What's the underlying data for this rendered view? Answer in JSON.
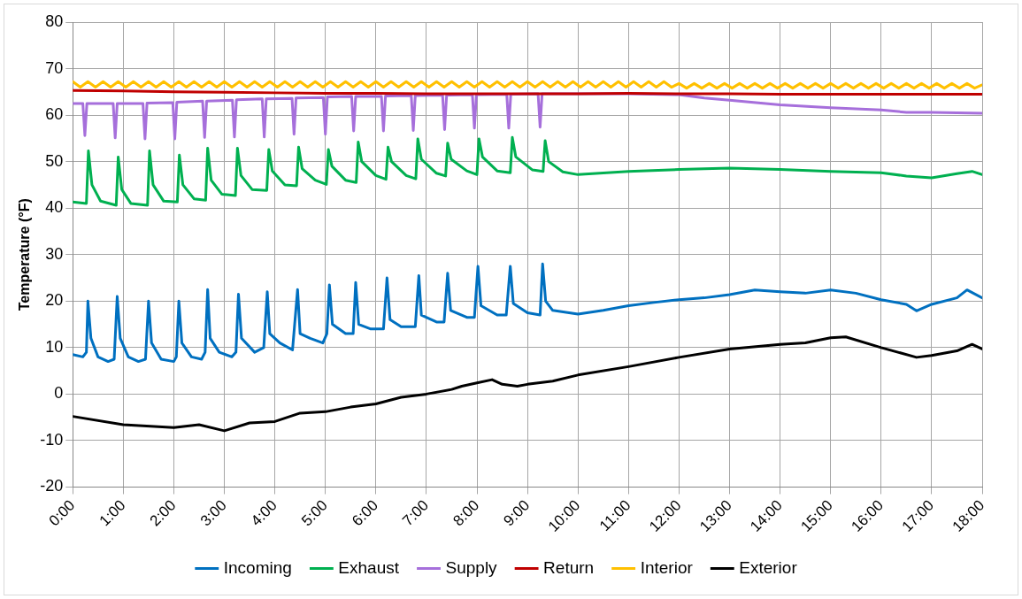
{
  "chart_data": {
    "type": "line",
    "ylabel": "Temperature (°F)",
    "xlim": [
      0,
      18
    ],
    "xticks": [
      {
        "value": 0,
        "label": "0:00"
      },
      {
        "value": 1,
        "label": "1:00"
      },
      {
        "value": 2,
        "label": "2:00"
      },
      {
        "value": 3,
        "label": "3:00"
      },
      {
        "value": 4,
        "label": "4:00"
      },
      {
        "value": 5,
        "label": "5:00"
      },
      {
        "value": 6,
        "label": "6:00"
      },
      {
        "value": 7,
        "label": "7:00"
      },
      {
        "value": 8,
        "label": "8:00"
      },
      {
        "value": 9,
        "label": "9:00"
      },
      {
        "value": 10,
        "label": "10:00"
      },
      {
        "value": 11,
        "label": "11:00"
      },
      {
        "value": 12,
        "label": "12:00"
      },
      {
        "value": 13,
        "label": "13:00"
      },
      {
        "value": 14,
        "label": "14:00"
      },
      {
        "value": 15,
        "label": "15:00"
      },
      {
        "value": 16,
        "label": "16:00"
      },
      {
        "value": 17,
        "label": "17:00"
      },
      {
        "value": 18,
        "label": "18:00"
      }
    ],
    "ylim": [
      -20,
      80
    ],
    "yticks": [
      -20,
      -10,
      0,
      10,
      20,
      30,
      40,
      50,
      60,
      70,
      80
    ],
    "grid": true,
    "legend": "bottom",
    "marker": "none",
    "line_style": "solid",
    "series": [
      {
        "name": "Incoming",
        "color": "#0070c0",
        "x": [
          0,
          0.2,
          0.27,
          0.3,
          0.36,
          0.5,
          0.7,
          0.82,
          0.88,
          0.94,
          1.1,
          1.3,
          1.44,
          1.5,
          1.56,
          1.75,
          2.0,
          2.05,
          2.1,
          2.16,
          2.35,
          2.55,
          2.62,
          2.67,
          2.72,
          2.9,
          3.15,
          3.23,
          3.28,
          3.34,
          3.6,
          3.78,
          3.85,
          3.9,
          4.1,
          4.35,
          4.45,
          4.5,
          4.7,
          4.95,
          5.03,
          5.08,
          5.14,
          5.4,
          5.55,
          5.6,
          5.66,
          5.9,
          6.15,
          6.22,
          6.28,
          6.5,
          6.78,
          6.85,
          6.9,
          7.2,
          7.35,
          7.42,
          7.48,
          7.8,
          7.95,
          8.02,
          8.08,
          8.4,
          8.58,
          8.66,
          8.72,
          9.0,
          9.25,
          9.3,
          9.36,
          9.5,
          10,
          10.5,
          11,
          11.5,
          12,
          12.5,
          13,
          13.5,
          14,
          14.5,
          15,
          15.5,
          16,
          16.5,
          16.7,
          17,
          17.5,
          17.7,
          18
        ],
        "values": [
          8.5,
          8,
          9,
          20,
          12,
          8,
          7,
          7.5,
          21,
          12,
          8,
          7,
          7.5,
          20,
          11,
          7.5,
          7,
          8,
          20,
          11,
          8,
          7.5,
          9,
          22.5,
          12,
          9,
          8,
          9,
          21.5,
          12,
          9,
          10,
          22,
          13,
          11,
          9.5,
          22.5,
          13,
          12,
          11,
          13,
          23.5,
          15,
          13,
          13,
          24,
          15,
          14,
          14,
          25,
          16,
          14.5,
          14.5,
          25.5,
          17,
          15.5,
          15.5,
          26,
          18,
          16.5,
          16.5,
          27.5,
          19,
          17,
          17,
          27.5,
          19.5,
          17.5,
          17,
          28,
          20,
          18,
          17.2,
          18,
          19,
          19.7,
          20.3,
          20.7,
          21.4,
          22.4,
          22,
          21.7,
          22.4,
          21.7,
          20.3,
          19.3,
          17.9,
          19.3,
          20.7,
          22.4,
          20.7
        ]
      },
      {
        "name": "Exhaust",
        "color": "#00b050",
        "x": [
          0,
          0.27,
          0.31,
          0.38,
          0.55,
          0.86,
          0.9,
          0.97,
          1.15,
          1.48,
          1.52,
          1.59,
          1.8,
          2.07,
          2.11,
          2.18,
          2.4,
          2.63,
          2.67,
          2.74,
          2.95,
          3.22,
          3.26,
          3.33,
          3.55,
          3.84,
          3.88,
          3.95,
          4.2,
          4.43,
          4.47,
          4.54,
          4.8,
          5.02,
          5.06,
          5.13,
          5.4,
          5.61,
          5.65,
          5.72,
          6.0,
          6.2,
          6.24,
          6.31,
          6.6,
          6.79,
          6.83,
          6.9,
          7.2,
          7.38,
          7.42,
          7.49,
          7.8,
          8.0,
          8.04,
          8.11,
          8.4,
          8.66,
          8.7,
          8.77,
          9.1,
          9.31,
          9.35,
          9.42,
          9.7,
          10,
          11,
          12,
          13,
          14,
          15,
          16,
          16.5,
          17,
          17.5,
          17.8,
          18
        ],
        "values": [
          41.3,
          41,
          52.3,
          45,
          41.5,
          40.6,
          51,
          44,
          41,
          40.6,
          52.3,
          45,
          41.5,
          41.3,
          51.4,
          45,
          42,
          41.7,
          52.9,
          46,
          43,
          42.7,
          52.9,
          47,
          44,
          43.8,
          52.6,
          48,
          45,
          44.8,
          53.1,
          48.5,
          46,
          45.1,
          52.6,
          49,
          46,
          45.5,
          54.2,
          50,
          47,
          46.2,
          53.1,
          50,
          47,
          46.3,
          54.9,
          50.5,
          47.5,
          46.9,
          54,
          50.5,
          48,
          47.2,
          54.9,
          51,
          48,
          47.6,
          55.2,
          51,
          48.2,
          47.9,
          54.5,
          50,
          47.8,
          47.2,
          47.9,
          48.3,
          48.6,
          48.3,
          47.9,
          47.6,
          46.9,
          46.5,
          47.4,
          47.9,
          47.2
        ]
      },
      {
        "name": "Supply",
        "color": "#a66fdb",
        "x": [
          0,
          0.2,
          0.24,
          0.28,
          0.8,
          0.84,
          0.88,
          1.39,
          1.43,
          1.47,
          1.98,
          2.02,
          2.06,
          2.57,
          2.61,
          2.65,
          3.16,
          3.2,
          3.24,
          3.75,
          3.79,
          3.83,
          4.34,
          4.38,
          4.42,
          4.96,
          5.0,
          5.04,
          5.52,
          5.56,
          5.6,
          6.11,
          6.15,
          6.19,
          6.7,
          6.74,
          6.78,
          7.32,
          7.36,
          7.4,
          7.91,
          7.95,
          7.99,
          8.59,
          8.63,
          8.67,
          9.21,
          9.25,
          9.29,
          10,
          11,
          12,
          12.5,
          13,
          14,
          15,
          16,
          16.5,
          17,
          18
        ],
        "values": [
          62.5,
          62.5,
          55.6,
          62.5,
          62.5,
          55.1,
          62.5,
          62.5,
          54.9,
          62.6,
          62.7,
          54.9,
          62.8,
          63,
          55.2,
          63,
          63.2,
          55.3,
          63.3,
          63.5,
          55.3,
          63.5,
          63.6,
          55.9,
          63.7,
          63.8,
          55.9,
          63.9,
          64,
          56.6,
          64,
          64,
          56.6,
          64.1,
          64.2,
          56.7,
          64.2,
          64.3,
          56.9,
          64.3,
          64.4,
          57.2,
          64.4,
          64.5,
          57.2,
          64.5,
          64.6,
          57.4,
          64.6,
          64.6,
          64.6,
          64.4,
          63.7,
          63.2,
          62.2,
          61.6,
          61.1,
          60.6,
          60.6,
          60.4
        ]
      },
      {
        "name": "Return",
        "color": "#c00000",
        "x": [
          0,
          1,
          2,
          3,
          4,
          5,
          6,
          7,
          8,
          9,
          10,
          11,
          12,
          13,
          14,
          15,
          16,
          17,
          18
        ],
        "values": [
          65.3,
          65.2,
          65,
          64.9,
          64.8,
          64.7,
          64.7,
          64.6,
          64.6,
          64.6,
          64.6,
          64.7,
          64.6,
          64.6,
          64.5,
          64.5,
          64.5,
          64.5,
          64.5
        ]
      },
      {
        "name": "Interior",
        "color": "#ffc000",
        "x": [
          0,
          0.15,
          0.3,
          0.45,
          0.6,
          0.75,
          0.9,
          1.05,
          1.2,
          1.35,
          1.5,
          1.65,
          1.8,
          1.95,
          2.1,
          2.25,
          2.4,
          2.55,
          2.7,
          2.85,
          3,
          3.15,
          3.3,
          3.45,
          3.6,
          3.75,
          3.9,
          4.05,
          4.2,
          4.35,
          4.5,
          4.65,
          4.8,
          4.95,
          5.1,
          5.25,
          5.4,
          5.55,
          5.7,
          5.85,
          6,
          6.15,
          6.3,
          6.45,
          6.6,
          6.75,
          6.9,
          7.05,
          7.2,
          7.35,
          7.5,
          7.65,
          7.8,
          7.95,
          8.1,
          8.25,
          8.4,
          8.55,
          8.7,
          8.85,
          9,
          9.15,
          9.3,
          9.45,
          9.6,
          9.75,
          9.9,
          10.05,
          10.2,
          10.35,
          10.5,
          10.65,
          10.8,
          10.95,
          11.1,
          11.25,
          11.4,
          11.55,
          11.7,
          11.85,
          12,
          12.15,
          12.3,
          12.45,
          12.6,
          12.75,
          12.9,
          13.05,
          13.2,
          13.35,
          13.5,
          13.65,
          13.8,
          13.95,
          14.1,
          14.25,
          14.4,
          14.55,
          14.7,
          14.85,
          15,
          15.15,
          15.3,
          15.45,
          15.6,
          15.75,
          15.9,
          16.05,
          16.2,
          16.35,
          16.5,
          16.65,
          16.8,
          16.95,
          17.1,
          17.25,
          17.4,
          17.55,
          17.7,
          17.85,
          18
        ],
        "values": [
          67.2,
          66,
          67.2,
          66,
          67.2,
          66,
          67.2,
          66,
          67.2,
          66,
          67.2,
          66,
          67.2,
          66,
          67.2,
          66,
          67.2,
          66,
          67.2,
          66,
          67.2,
          66,
          67.2,
          66,
          67.2,
          66,
          67.2,
          66,
          67.2,
          66,
          67.2,
          66,
          67.2,
          66,
          67.2,
          66,
          67.2,
          66,
          67.2,
          66,
          67.2,
          66,
          67.2,
          66,
          67.2,
          66,
          67.2,
          66,
          67.2,
          66,
          67.2,
          66,
          67.2,
          66,
          67.2,
          66,
          67.2,
          66,
          67.2,
          66,
          67.2,
          66,
          67.2,
          66,
          67.2,
          66,
          67.2,
          66,
          67.2,
          66,
          67.2,
          66,
          67.2,
          66,
          67.2,
          66,
          67.2,
          66,
          67.2,
          66,
          66.8,
          65.8,
          66.8,
          65.8,
          66.8,
          65.8,
          66.8,
          65.8,
          66.8,
          65.8,
          66.8,
          65.8,
          66.8,
          65.8,
          66.8,
          65.8,
          66.8,
          65.8,
          66.8,
          65.8,
          66.8,
          65.8,
          66.8,
          65.8,
          66.8,
          65.8,
          66.8,
          65.8,
          66.8,
          65.8,
          66.8,
          65.8,
          66.8,
          65.8,
          66.8,
          65.8,
          66.8,
          65.8,
          66.8,
          65.8,
          66.5
        ]
      },
      {
        "name": "Exterior",
        "color": "#000000",
        "x": [
          0,
          1,
          2,
          2.5,
          3,
          3.5,
          4,
          4.5,
          5,
          5.5,
          6,
          6.5,
          7,
          7.5,
          7.7,
          8,
          8.3,
          8.5,
          8.8,
          9,
          9.5,
          10,
          11,
          12,
          13,
          14,
          14.5,
          15,
          15.3,
          16,
          16.7,
          17,
          17.5,
          17.8,
          18
        ],
        "values": [
          -4.8,
          -6.6,
          -7.2,
          -6.6,
          -7.9,
          -6.2,
          -5.9,
          -4.1,
          -3.8,
          -2.8,
          -2.1,
          -0.7,
          0,
          1,
          1.7,
          2.4,
          3.1,
          2.1,
          1.7,
          2.1,
          2.8,
          4.1,
          5.9,
          7.9,
          9.7,
          10.7,
          11,
          12.1,
          12.3,
          10,
          7.9,
          8.3,
          9.3,
          10.7,
          9.7
        ]
      }
    ]
  }
}
